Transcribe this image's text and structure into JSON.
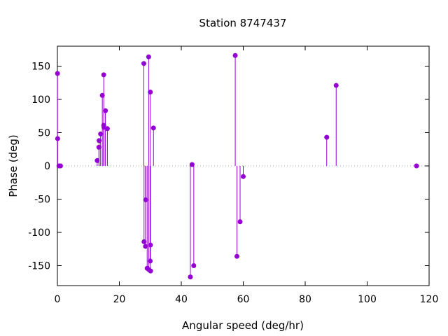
{
  "chart_data": {
    "type": "scatter",
    "style": "impulses-with-points",
    "title": "Station 8747437",
    "xlabel": "Angular speed (deg/hr)",
    "ylabel": "Phase (deg)",
    "xlim": [
      0,
      120
    ],
    "ylim": [
      -180,
      180
    ],
    "xticks": [
      0,
      20,
      40,
      60,
      80,
      100,
      120
    ],
    "yticks": [
      -150,
      -100,
      -50,
      0,
      50,
      100,
      150
    ],
    "grid": false,
    "legend": "none",
    "zero_line": true,
    "series_color": "#9400d3",
    "zero_line_color": "#a0a0a0",
    "points": [
      {
        "x": 0.04,
        "y": 139
      },
      {
        "x": 0.08,
        "y": 41
      },
      {
        "x": 0.5,
        "y": 0
      },
      {
        "x": 1.0,
        "y": 0
      },
      {
        "x": 12.85,
        "y": 8
      },
      {
        "x": 13.4,
        "y": 28
      },
      {
        "x": 13.47,
        "y": 38
      },
      {
        "x": 13.94,
        "y": 48
      },
      {
        "x": 14.5,
        "y": 106
      },
      {
        "x": 14.96,
        "y": 137
      },
      {
        "x": 14.96,
        "y": 61
      },
      {
        "x": 15.04,
        "y": 58
      },
      {
        "x": 15.5,
        "y": 83
      },
      {
        "x": 16.14,
        "y": 56
      },
      {
        "x": 27.9,
        "y": 154
      },
      {
        "x": 27.97,
        "y": -114
      },
      {
        "x": 28.44,
        "y": -121
      },
      {
        "x": 28.51,
        "y": -51
      },
      {
        "x": 28.98,
        "y": -154
      },
      {
        "x": 29.46,
        "y": 164
      },
      {
        "x": 29.53,
        "y": -156
      },
      {
        "x": 29.96,
        "y": -143
      },
      {
        "x": 30.0,
        "y": 111
      },
      {
        "x": 30.04,
        "y": -119
      },
      {
        "x": 30.08,
        "y": -158
      },
      {
        "x": 31.02,
        "y": 57
      },
      {
        "x": 42.93,
        "y": -167
      },
      {
        "x": 43.48,
        "y": 2
      },
      {
        "x": 44.03,
        "y": -150
      },
      {
        "x": 57.42,
        "y": 166
      },
      {
        "x": 57.97,
        "y": -136
      },
      {
        "x": 58.98,
        "y": -84
      },
      {
        "x": 60.0,
        "y": -16
      },
      {
        "x": 86.95,
        "y": 43
      },
      {
        "x": 90.0,
        "y": 121
      },
      {
        "x": 115.94,
        "y": 0
      }
    ]
  }
}
